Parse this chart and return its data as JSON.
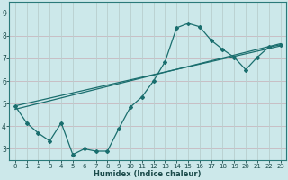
{
  "xlabel": "Humidex (Indice chaleur)",
  "ylabel": "",
  "xlim": [
    -0.5,
    23.5
  ],
  "ylim": [
    2.5,
    9.5
  ],
  "xticks": [
    0,
    1,
    2,
    3,
    4,
    5,
    6,
    7,
    8,
    9,
    10,
    11,
    12,
    13,
    14,
    15,
    16,
    17,
    18,
    19,
    20,
    21,
    22,
    23
  ],
  "yticks": [
    3,
    4,
    5,
    6,
    7,
    8,
    9
  ],
  "bg_color": "#cce8ea",
  "grid_color_h": "#c8b8be",
  "grid_color_v": "#b8cece",
  "line_color": "#1a6e6e",
  "series1_x": [
    0,
    1,
    2,
    3,
    4,
    5,
    6,
    7,
    8,
    9,
    10,
    11,
    12,
    13,
    14,
    15,
    16,
    17,
    18,
    19,
    20,
    21,
    22,
    23
  ],
  "series1_y": [
    4.9,
    4.15,
    3.7,
    3.35,
    4.15,
    2.75,
    3.0,
    2.9,
    2.9,
    3.9,
    4.85,
    5.3,
    6.0,
    6.85,
    8.35,
    8.55,
    8.4,
    7.8,
    7.4,
    7.05,
    6.5,
    7.05,
    7.5,
    7.6
  ],
  "series2_x": [
    0,
    23
  ],
  "series2_y": [
    4.9,
    7.55
  ],
  "series3_x": [
    0,
    23
  ],
  "series3_y": [
    4.75,
    7.65
  ],
  "figwidth": 3.2,
  "figheight": 2.0,
  "dpi": 100
}
